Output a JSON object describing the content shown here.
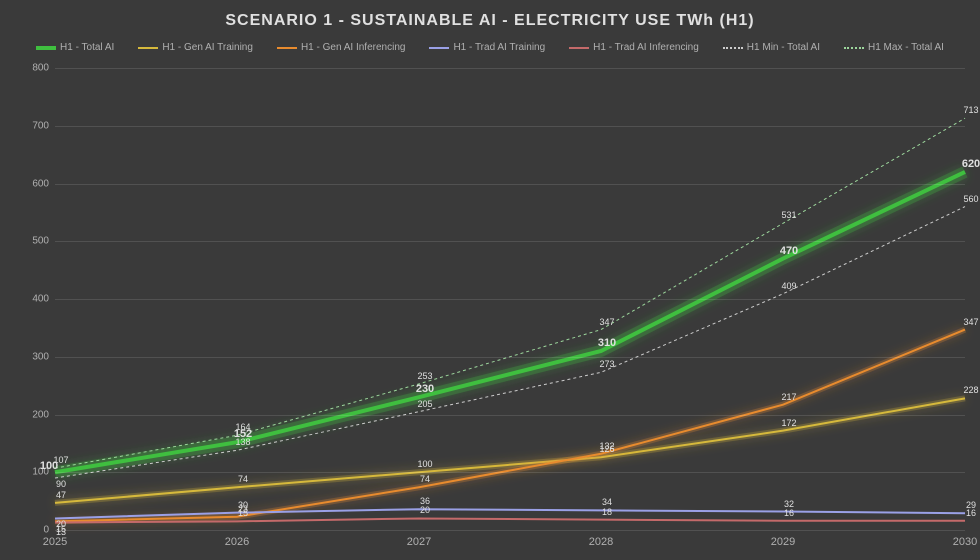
{
  "chart": {
    "type": "line",
    "title": "SCENARIO 1 - SUSTAINABLE AI - ELECTRICITY USE TWh (H1)",
    "title_fontsize": 16,
    "background_color": "#3a3a3a",
    "grid_color": "rgba(255,255,255,0.12)",
    "text_color": "#e0e0e0",
    "label_fontsize": 10,
    "x": {
      "categories": [
        "2025",
        "2026",
        "2027",
        "2028",
        "2029",
        "2030"
      ]
    },
    "y": {
      "min": 0,
      "max": 800,
      "tick_step": 100,
      "ticks": [
        0,
        100,
        200,
        300,
        400,
        500,
        600,
        700,
        800
      ]
    },
    "series": [
      {
        "id": "total",
        "name": "H1 - Total AI",
        "color": "#3fbf3f",
        "line_width": 4,
        "dash": "",
        "glow": true,
        "data": [
          100,
          152,
          230,
          310,
          470,
          620
        ],
        "label_bold": true
      },
      {
        "id": "gen_train",
        "name": "H1 - Gen AI Training",
        "color": "#d6b93c",
        "line_width": 2,
        "dash": "",
        "glow": true,
        "data": [
          47,
          74,
          100,
          126,
          172,
          228
        ]
      },
      {
        "id": "gen_inf",
        "name": "H1 - Gen AI Inferencing",
        "color": "#e88b2e",
        "line_width": 2,
        "dash": "",
        "glow": true,
        "data": [
          15,
          23,
          74,
          132,
          217,
          347
        ]
      },
      {
        "id": "trad_train",
        "name": "H1 - Trad AI Training",
        "color": "#9aa0e6",
        "line_width": 2,
        "dash": "",
        "data": [
          20,
          30,
          36,
          34,
          32,
          29
        ]
      },
      {
        "id": "trad_inf",
        "name": "H1 - Trad AI Inferencing",
        "color": "#c46a6a",
        "line_width": 2,
        "dash": "",
        "data": [
          13,
          15,
          20,
          18,
          16,
          16
        ]
      },
      {
        "id": "min_total",
        "name": "H1 Min - Total AI",
        "color": "#cccccc",
        "line_width": 1,
        "dash": "3 3",
        "data": [
          90,
          138,
          205,
          273,
          409,
          560
        ]
      },
      {
        "id": "max_total",
        "name": "H1 Max - Total AI",
        "color": "#9cd69c",
        "line_width": 1,
        "dash": "3 3",
        "data": [
          107,
          164,
          253,
          347,
          531,
          713
        ]
      }
    ],
    "label_overrides": {
      "total_0": {
        "text": "100",
        "dx": -6,
        "dy": -6
      },
      "gen_inf_0": {
        "text": "15",
        "dy": 8
      },
      "trad_train_0": {
        "text": "20",
        "dy": 6
      },
      "trad_inf_0": {
        "text": "13",
        "dy": 10
      },
      "min_total_0": {
        "text": "90",
        "dy": 6
      },
      "max_total_0": {
        "text": "107",
        "dy": -8
      }
    }
  }
}
